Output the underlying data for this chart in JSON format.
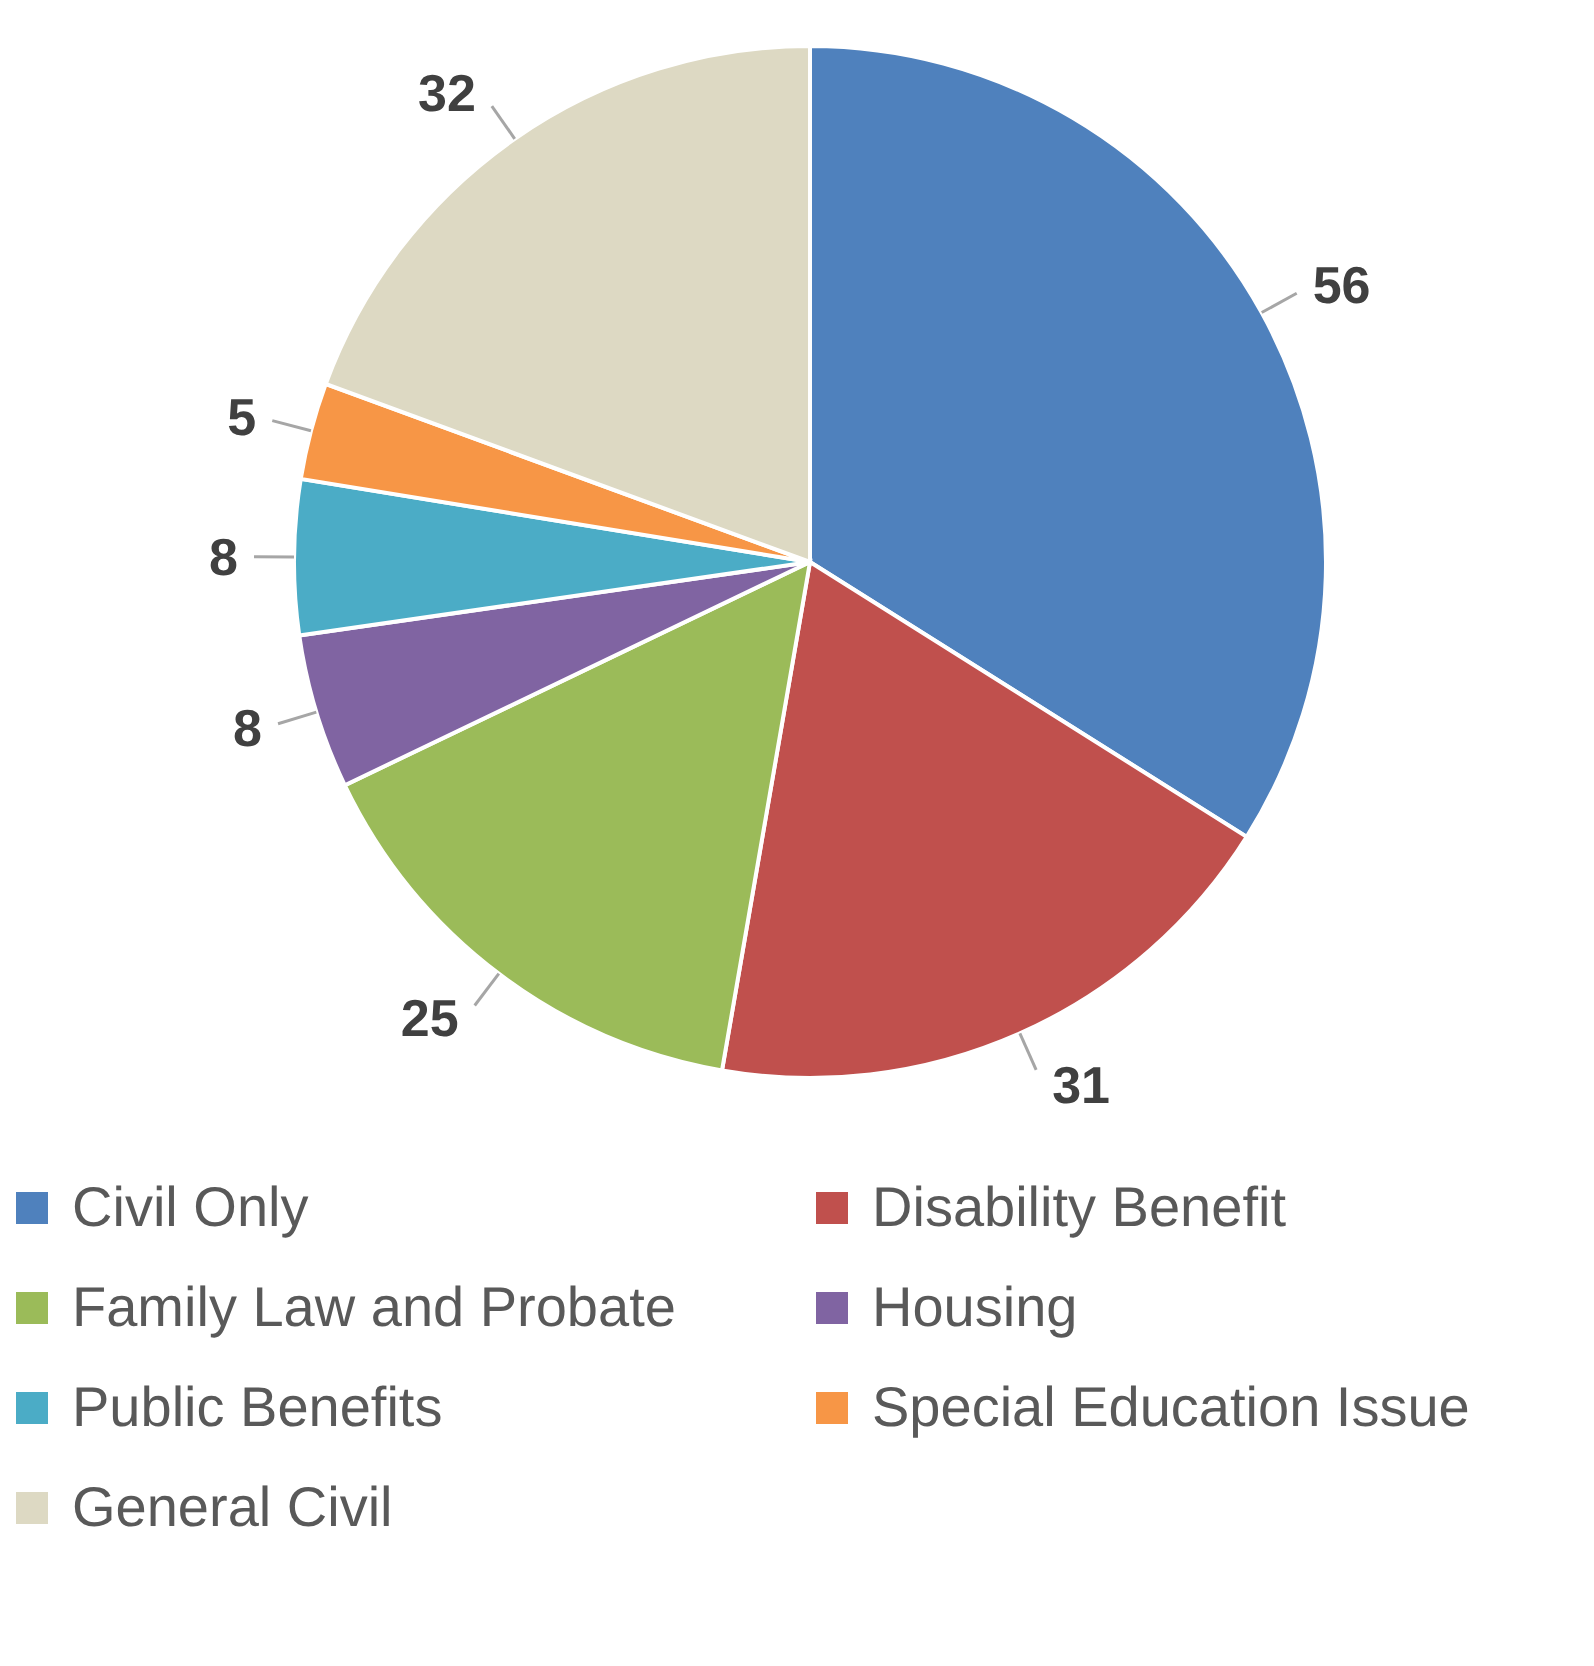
{
  "chart_data": {
    "type": "pie",
    "categories": [
      "Civil Only",
      "Disability Benefit",
      "Family Law and Probate",
      "Housing",
      "Public Benefits",
      "Special Education Issue",
      "General Civil"
    ],
    "values": [
      56,
      31,
      25,
      8,
      8,
      5,
      32
    ],
    "colors": [
      "#4f81bd",
      "#c0504d",
      "#9bbb59",
      "#8064a2",
      "#4bacc6",
      "#f79646",
      "#ddd9c3"
    ],
    "data_labels": true,
    "legend": "bottom"
  }
}
